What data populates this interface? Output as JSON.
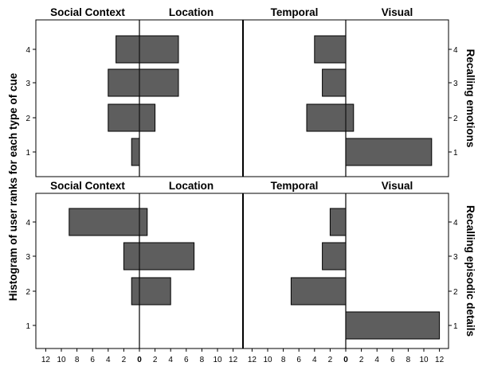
{
  "chart_data": {
    "type": "bar",
    "orientation": "horizontal",
    "y_axis_title": "Histogram of user ranks for each type of cue",
    "x_ticks": [
      "12",
      "10",
      "8",
      "6",
      "4",
      "2",
      "0",
      "2",
      "4",
      "6",
      "8",
      "10",
      "12"
    ],
    "rank_ticks": [
      "1",
      "2",
      "3",
      "4"
    ],
    "rows": [
      {
        "title": "Recalling emotions",
        "left_pair": {
          "left_label": "Social Context",
          "right_label": "Location",
          "left_values": [
            1,
            4,
            4,
            3
          ],
          "right_values": [
            0,
            2,
            5,
            5
          ]
        },
        "right_pair": {
          "left_label": "Temporal",
          "right_label": "Visual",
          "left_values": [
            0,
            5,
            3,
            4
          ],
          "right_values": [
            11,
            1,
            0,
            0
          ]
        }
      },
      {
        "title": "Recalling episodic details",
        "left_pair": {
          "left_label": "Social Context",
          "right_label": "Location",
          "left_values": [
            0,
            1,
            2,
            9
          ],
          "right_values": [
            0,
            4,
            7,
            1
          ]
        },
        "right_pair": {
          "left_label": "Temporal",
          "right_label": "Visual",
          "left_values": [
            0,
            7,
            3,
            2
          ],
          "right_values": [
            12,
            0,
            0,
            0
          ]
        }
      }
    ],
    "xlim": [
      0,
      12
    ],
    "bar_color": "#5e5e5e"
  }
}
